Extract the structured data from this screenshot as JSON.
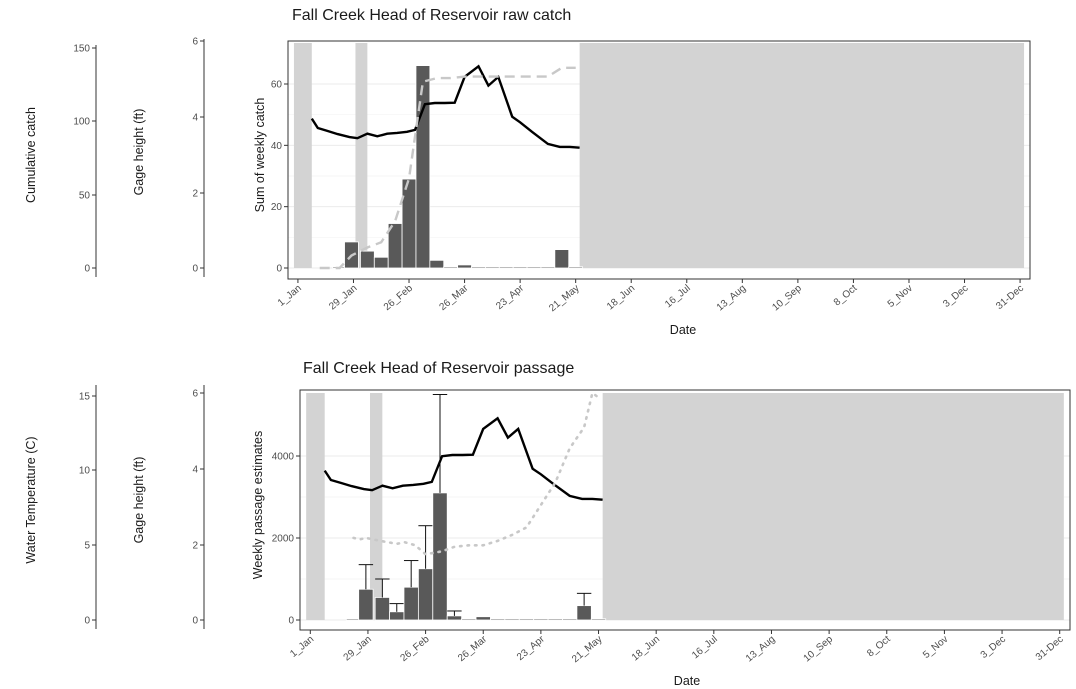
{
  "colors": {
    "bar": "#595959",
    "bar_edge": "#ffffff",
    "gage_line": "#000000",
    "temp_line": "#c8c8c8",
    "shade": "#d3d3d3",
    "grid": "#ebebeb",
    "panel_border": "#333333"
  },
  "chart_data": [
    {
      "type": "bar",
      "title": "Fall Creek Head of Reservoir raw catch",
      "xlabel": "Date",
      "ylabel": "Sum of weekly catch",
      "x_tick_labels": [
        "1_Jan",
        "29_Jan",
        "26_Feb",
        "26_Mar",
        "23_Apr",
        "21_May",
        "18_Jun",
        "16_Jul",
        "13_Aug",
        "10_Sep",
        "8_Oct",
        "5_Nov",
        "3_Dec",
        "31-Dec"
      ],
      "x_tick_doy": [
        1,
        29,
        57,
        85,
        113,
        141,
        169,
        197,
        225,
        253,
        281,
        309,
        337,
        365
      ],
      "ylim": [
        0,
        70
      ],
      "y_ticks": [
        0,
        20,
        40,
        60
      ],
      "grid": true,
      "secondary_axes": [
        {
          "label": "Gage height (ft)",
          "ticks": [
            0,
            2,
            4,
            6
          ],
          "ylim": [
            0,
            6
          ]
        },
        {
          "label": "Cumulative catch",
          "ticks": [
            0,
            50,
            100,
            150
          ],
          "ylim": [
            0,
            150
          ]
        }
      ],
      "shaded_ranges_doy": [
        [
          -1,
          8
        ],
        [
          30,
          36
        ],
        [
          143,
          367
        ]
      ],
      "bars": {
        "x_doy": [
          22,
          28,
          36,
          43,
          50,
          57,
          64,
          71,
          78,
          85,
          92,
          99,
          106,
          113,
          120,
          127,
          134,
          141
        ],
        "values": [
          0,
          8.5,
          5.5,
          3.5,
          14.5,
          29,
          66,
          2.5,
          0,
          1,
          0,
          0,
          0,
          0,
          0,
          0,
          6,
          0
        ]
      },
      "series": [
        {
          "name": "Gage height",
          "axis": "Gage height (ft)",
          "style": "solid",
          "x_doy": [
            8,
            11,
            16,
            21,
            27,
            31,
            36,
            41,
            46,
            51,
            56,
            60,
            65,
            70,
            75,
            80,
            85,
            92,
            97,
            102,
            109,
            113,
            119,
            127,
            133,
            138,
            143
          ],
          "values": [
            3.95,
            3.7,
            3.62,
            3.54,
            3.46,
            3.43,
            3.55,
            3.48,
            3.55,
            3.57,
            3.6,
            3.65,
            4.33,
            4.36,
            4.36,
            4.37,
            5.05,
            5.33,
            4.82,
            5.05,
            4.0,
            3.85,
            3.6,
            3.28,
            3.2,
            3.2,
            3.18
          ]
        },
        {
          "name": "Cumulative catch",
          "axis": "Cumulative catch",
          "style": "dashed",
          "x_doy": [
            12,
            22,
            28,
            36,
            43,
            50,
            57,
            64,
            71,
            78,
            85,
            92,
            99,
            106,
            113,
            120,
            127,
            134,
            141
          ],
          "values": [
            0,
            0,
            8.5,
            14,
            17.5,
            32,
            61,
            127,
            129.5,
            129.5,
            130.5,
            130.5,
            130.5,
            130.5,
            130.5,
            130.5,
            130.5,
            136.5,
            136.5
          ]
        }
      ]
    },
    {
      "type": "bar",
      "title": "Fall Creek Head of Reservoir passage",
      "xlabel": "Date",
      "ylabel": "Weekly passage estimates",
      "x_tick_labels": [
        "1_Jan",
        "29_Jan",
        "26_Feb",
        "26_Mar",
        "23_Apr",
        "21_May",
        "18_Jun",
        "16_Jul",
        "13_Aug",
        "10_Sep",
        "8_Oct",
        "5_Nov",
        "3_Dec",
        "31-Dec"
      ],
      "x_tick_doy": [
        1,
        29,
        57,
        85,
        113,
        141,
        169,
        197,
        225,
        253,
        281,
        309,
        337,
        365
      ],
      "ylim": [
        -200,
        5600
      ],
      "y_ticks": [
        0,
        2000,
        4000
      ],
      "grid": true,
      "secondary_axes": [
        {
          "label": "Gage height (ft)",
          "ticks": [
            0,
            2,
            4,
            6
          ],
          "ylim": [
            0,
            6
          ]
        },
        {
          "label": "Water Temperature (C)",
          "ticks": [
            0,
            5,
            10,
            15
          ],
          "ylim": [
            0,
            15
          ]
        }
      ],
      "shaded_ranges_doy": [
        [
          -1,
          8
        ],
        [
          30,
          36
        ],
        [
          143,
          367
        ]
      ],
      "bars": {
        "x_doy": [
          22,
          28,
          36,
          43,
          50,
          57,
          64,
          71,
          78,
          85,
          92,
          99,
          106,
          113,
          120,
          127,
          134,
          141
        ],
        "values": [
          0,
          750,
          550,
          200,
          800,
          1250,
          3100,
          100,
          0,
          80,
          0,
          0,
          0,
          0,
          0,
          0,
          350,
          0
        ],
        "error_high": [
          0,
          1350,
          1000,
          400,
          1450,
          2300,
          5500,
          220,
          0,
          0,
          0,
          0,
          0,
          0,
          0,
          0,
          650,
          0
        ]
      },
      "series": [
        {
          "name": "Gage height",
          "axis": "Gage height (ft)",
          "style": "solid",
          "x_doy": [
            8,
            11,
            16,
            21,
            27,
            31,
            36,
            41,
            46,
            51,
            56,
            60,
            65,
            70,
            75,
            80,
            85,
            92,
            97,
            102,
            109,
            113,
            119,
            127,
            133,
            138,
            143
          ],
          "values": [
            3.95,
            3.7,
            3.62,
            3.54,
            3.46,
            3.43,
            3.55,
            3.48,
            3.55,
            3.57,
            3.6,
            3.65,
            4.33,
            4.36,
            4.36,
            4.37,
            5.05,
            5.33,
            4.82,
            5.05,
            4.0,
            3.85,
            3.6,
            3.28,
            3.2,
            3.2,
            3.18
          ]
        },
        {
          "name": "Water Temperature",
          "axis": "Water Temperature (C)",
          "style": "dotted",
          "x_doy": [
            22,
            25,
            28,
            35,
            43,
            47,
            52,
            57,
            65,
            71,
            78,
            85,
            92,
            99,
            106,
            113,
            120,
            127,
            134,
            138,
            142
          ],
          "values": [
            5.5,
            5.4,
            5.5,
            5.3,
            5.1,
            5.2,
            5.0,
            4.4,
            4.6,
            4.9,
            5.0,
            5.0,
            5.3,
            5.7,
            6.2,
            7.7,
            9.2,
            11.5,
            12.9,
            15.2,
            14.8
          ]
        }
      ]
    }
  ]
}
